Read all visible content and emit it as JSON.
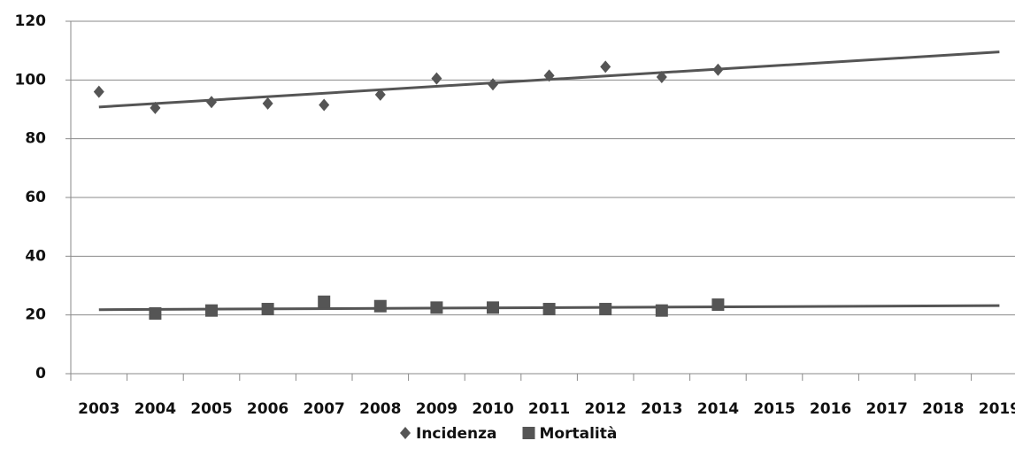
{
  "chart_data": {
    "type": "scatter",
    "categories": [
      "2003",
      "2004",
      "2005",
      "2006",
      "2007",
      "2008",
      "2009",
      "2010",
      "2011",
      "2012",
      "2013",
      "2014",
      "2015",
      "2016",
      "2017",
      "2018",
      "2019"
    ],
    "series": [
      {
        "name": "Incidenza",
        "color": "#555555",
        "marker": "diamond",
        "values": [
          96,
          90.5,
          92.5,
          92,
          91.5,
          95,
          100.5,
          98.5,
          101.5,
          104.5,
          101,
          103.5,
          null,
          null,
          null,
          null,
          null
        ]
      },
      {
        "name": "Mortalità",
        "color": "#555555",
        "marker": "square",
        "values": [
          null,
          20.5,
          21.5,
          22,
          24.5,
          23,
          22.5,
          22.5,
          22,
          22,
          21.5,
          23.5,
          null,
          null,
          null,
          null,
          null
        ]
      }
    ],
    "trendline": true,
    "ylim": [
      0,
      120
    ],
    "yticks": [
      0,
      20,
      40,
      60,
      80,
      100,
      120
    ],
    "grid": true,
    "legend": "bottom"
  }
}
